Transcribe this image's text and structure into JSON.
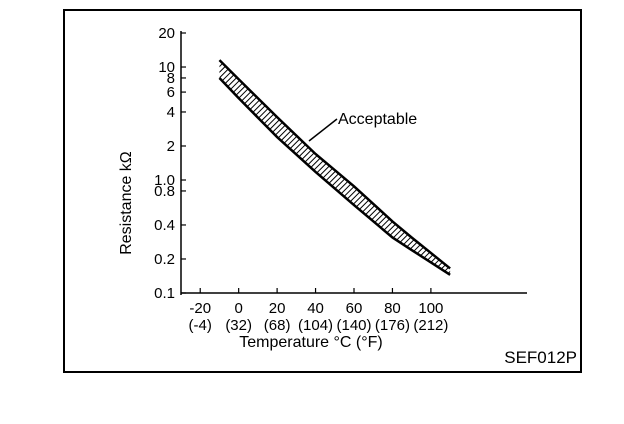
{
  "chart_data": {
    "type": "area",
    "ylabel": "Resistance kΩ",
    "xlabel": "Temperature °C (°F)",
    "y_scale": "log",
    "ylim": [
      0.1,
      20
    ],
    "xlim": [
      -30,
      150
    ],
    "yticks": [
      {
        "value": 20,
        "label": "20"
      },
      {
        "value": 10,
        "label": "10"
      },
      {
        "value": 8,
        "label": "8"
      },
      {
        "value": 6,
        "label": "6"
      },
      {
        "value": 4,
        "label": "4"
      },
      {
        "value": 2,
        "label": "2"
      },
      {
        "value": 1.0,
        "label": "1.0"
      },
      {
        "value": 0.8,
        "label": "0.8"
      },
      {
        "value": 0.4,
        "label": "0.4"
      },
      {
        "value": 0.2,
        "label": "0.2"
      },
      {
        "value": 0.1,
        "label": "0.1"
      }
    ],
    "xticks": [
      {
        "value": -20,
        "label": "-20",
        "sub": "(-4)"
      },
      {
        "value": 0,
        "label": "0",
        "sub": "(32)"
      },
      {
        "value": 20,
        "label": "20",
        "sub": "(68)"
      },
      {
        "value": 40,
        "label": "40",
        "sub": "(104)"
      },
      {
        "value": 60,
        "label": "60",
        "sub": "(140)"
      },
      {
        "value": 80,
        "label": "80",
        "sub": "(176)"
      },
      {
        "value": 100,
        "label": "100",
        "sub": "(212)"
      }
    ],
    "series": [
      {
        "name": "Acceptable",
        "x": [
          -10,
          0,
          20,
          40,
          60,
          80,
          90,
          110
        ],
        "upper": [
          11.5,
          7.8,
          3.6,
          1.7,
          0.88,
          0.43,
          0.31,
          0.165
        ],
        "lower": [
          8.0,
          5.3,
          2.4,
          1.18,
          0.6,
          0.31,
          0.24,
          0.145
        ]
      }
    ],
    "annotation": "Acceptable",
    "grid": false
  },
  "figure_code": "SEF012P"
}
